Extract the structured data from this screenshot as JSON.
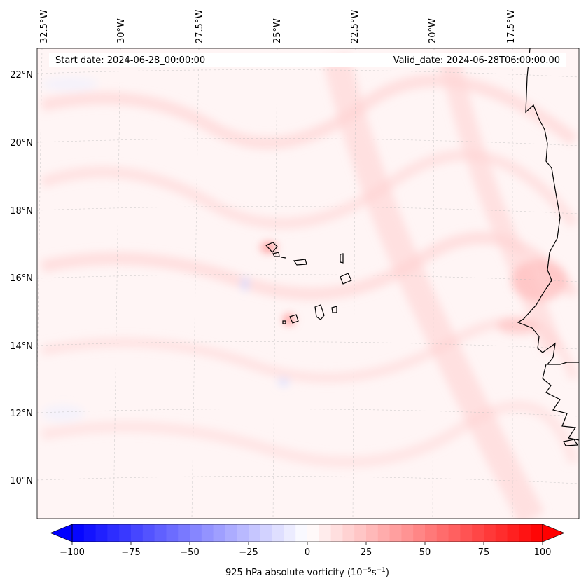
{
  "map": {
    "start_date": "Start date: 2024-06-28_00:00:00",
    "valid_date": "Valid_date: 2024-06-28T06:00:00.00",
    "lon_labels": [
      "32.5°W",
      "30°W",
      "27.5°W",
      "25°W",
      "22.5°W",
      "20°W",
      "17.5°W"
    ],
    "lat_labels": [
      "22°N",
      "20°N",
      "18°N",
      "16°N",
      "14°N",
      "12°N",
      "10°N"
    ],
    "colors": {
      "negative": "#0000ff",
      "neutral": "#ffffff",
      "positive": "#ff0000",
      "coast": "#000000"
    }
  },
  "colorbar": {
    "ticks": [
      "−100",
      "−75",
      "−50",
      "−25",
      "0",
      "25",
      "50",
      "75",
      "100"
    ],
    "label_prefix": "925 hPa absolute vorticity (10",
    "label_exp1": "−5",
    "label_mid": "s",
    "label_exp2": "−1",
    "label_suffix": ")",
    "range": [
      -100,
      100
    ]
  }
}
